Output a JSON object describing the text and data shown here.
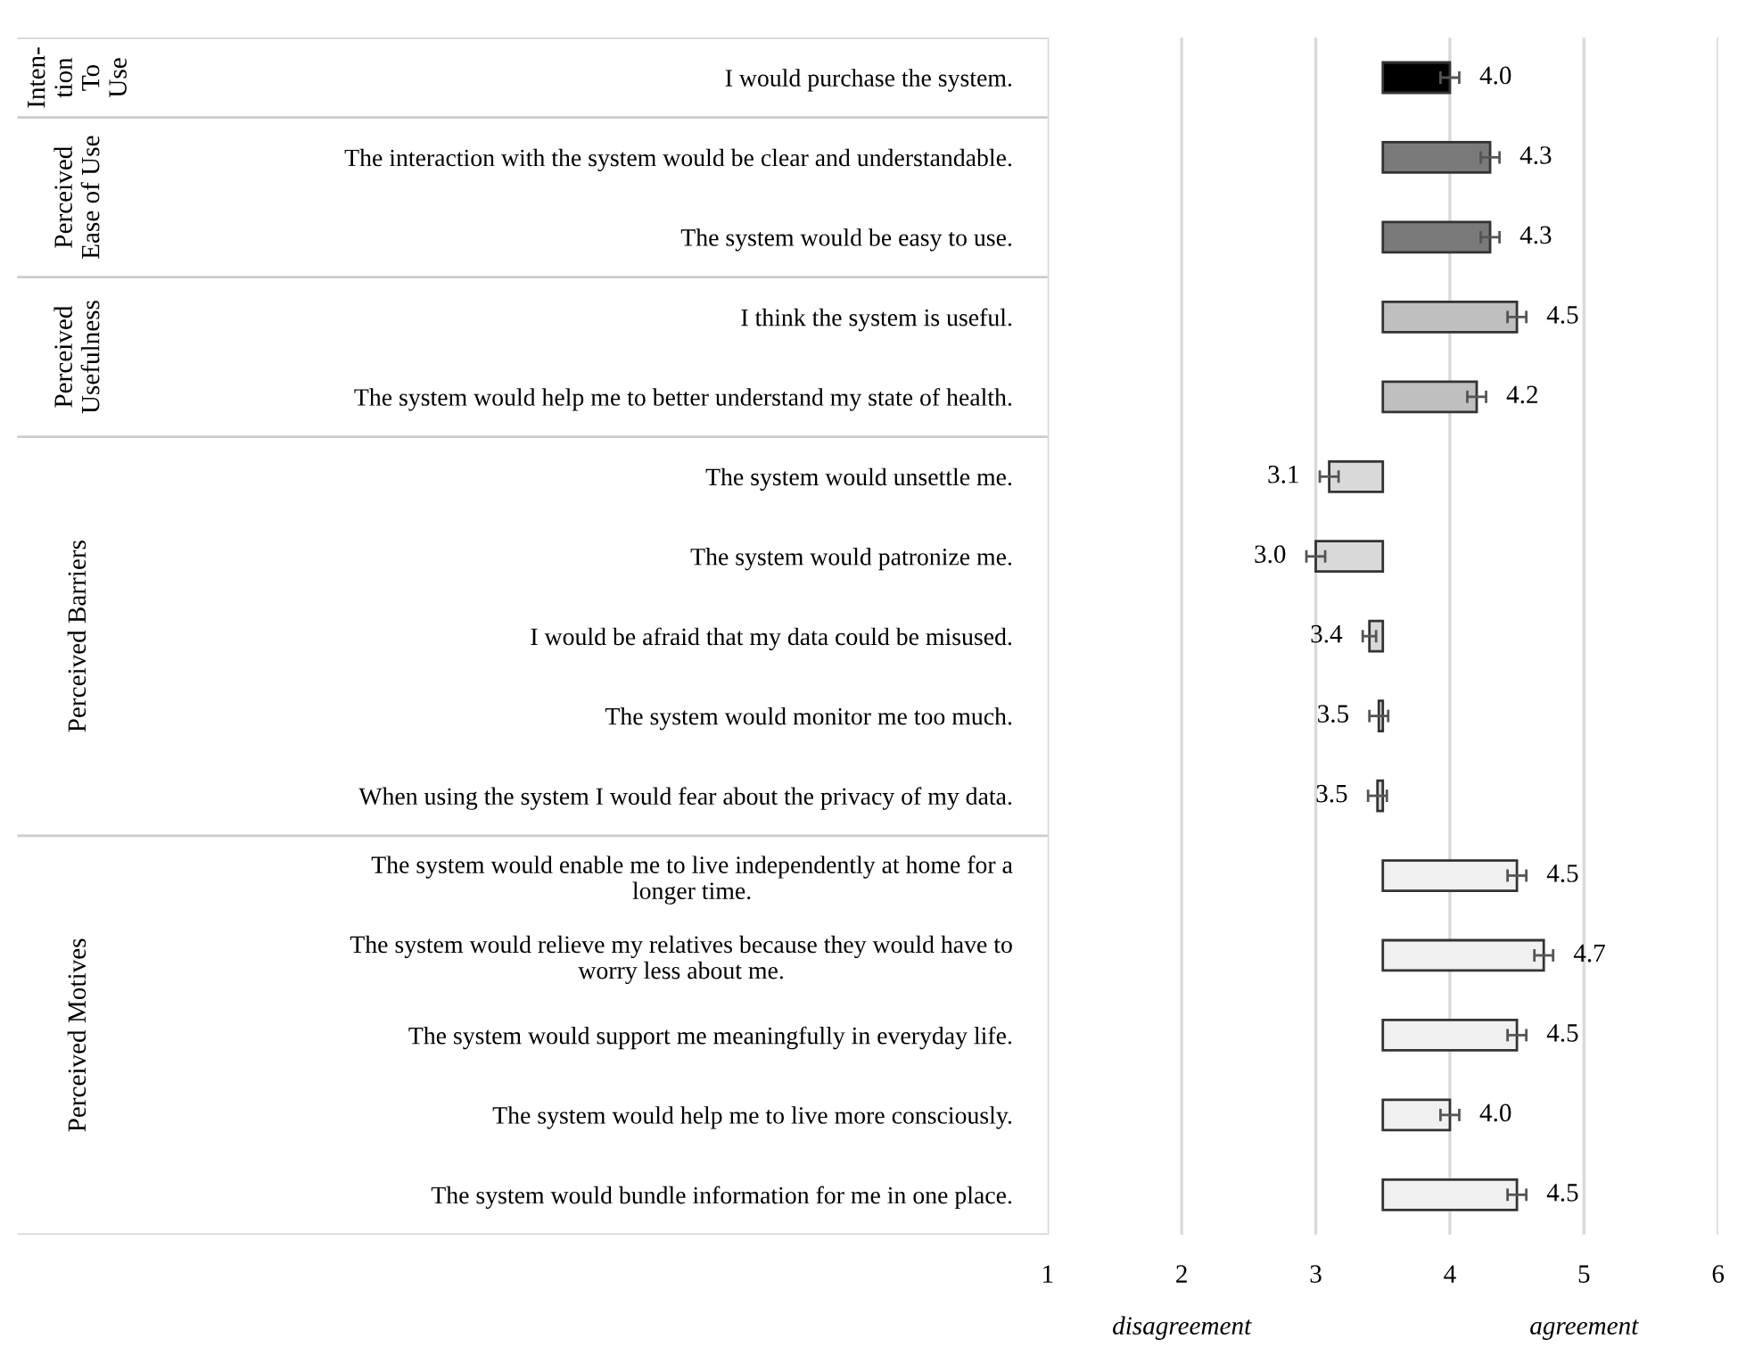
{
  "chart_data": {
    "type": "bar",
    "orientation": "horizontal",
    "categories": [
      "I would purchase the system.",
      "The interaction with the system would be clear and understandable.",
      "The system would be easy to use.",
      "I think the system is useful.",
      "The system would help me to better understand my state of health.",
      "The system would unsettle me.",
      "The system would patronize me.",
      "I would be afraid that my data could be misused.",
      "The system would monitor me too much.",
      "When using the system I would fear about the privacy of my data.",
      "The system would enable me to live independently at home for a\nlonger time.",
      "The system would relieve my relatives because they would have to\nworry less about me.",
      "The system would support me meaningfully in everyday life.",
      "The system would help me to live more consciously.",
      "The system would bundle information for me in one place."
    ],
    "base": [
      3.5,
      3.5,
      3.5,
      3.5,
      3.5,
      3.5,
      3.5,
      3.5,
      3.5,
      3.5,
      3.5,
      3.5,
      3.5,
      3.5,
      3.5
    ],
    "values": [
      0.5,
      0.8,
      0.8,
      1.0,
      0.7,
      -0.4,
      -0.5,
      -0.1,
      -0.03,
      -0.04,
      1.0,
      1.2,
      1.0,
      0.5,
      1.0
    ],
    "value_labels": [
      "4.0",
      "4.3",
      "4.3",
      "4.5",
      "4.2",
      "3.1",
      "3.0",
      "3.4",
      "3.5",
      "3.5",
      "4.5",
      "4.7",
      "4.5",
      "4.0",
      "4.5"
    ],
    "errors": [
      0.07,
      0.07,
      0.07,
      0.07,
      0.07,
      0.07,
      0.07,
      0.05,
      0.07,
      0.07,
      0.07,
      0.07,
      0.07,
      0.07,
      0.07
    ],
    "colors": [
      "#000000",
      "#7a7a7a",
      "#7a7a7a",
      "#bfbfbf",
      "#bfbfbf",
      "#d9d9d9",
      "#d9d9d9",
      "#d9d9d9",
      "#d9d9d9",
      "#d9d9d9",
      "#f0f0f0",
      "#f0f0f0",
      "#f0f0f0",
      "#f0f0f0",
      "#f0f0f0"
    ],
    "xlim": [
      1,
      6
    ],
    "xticks": [
      1,
      2,
      3,
      4,
      5,
      6
    ],
    "grid": "x",
    "annotations": [
      "Inten-\ntion\nTo\nUse",
      "Perceived\nEase of Use",
      "Perceived\nUsefulness",
      "Perceived Barriers",
      "Perceived Motives",
      "disagreement",
      "agreement"
    ]
  }
}
